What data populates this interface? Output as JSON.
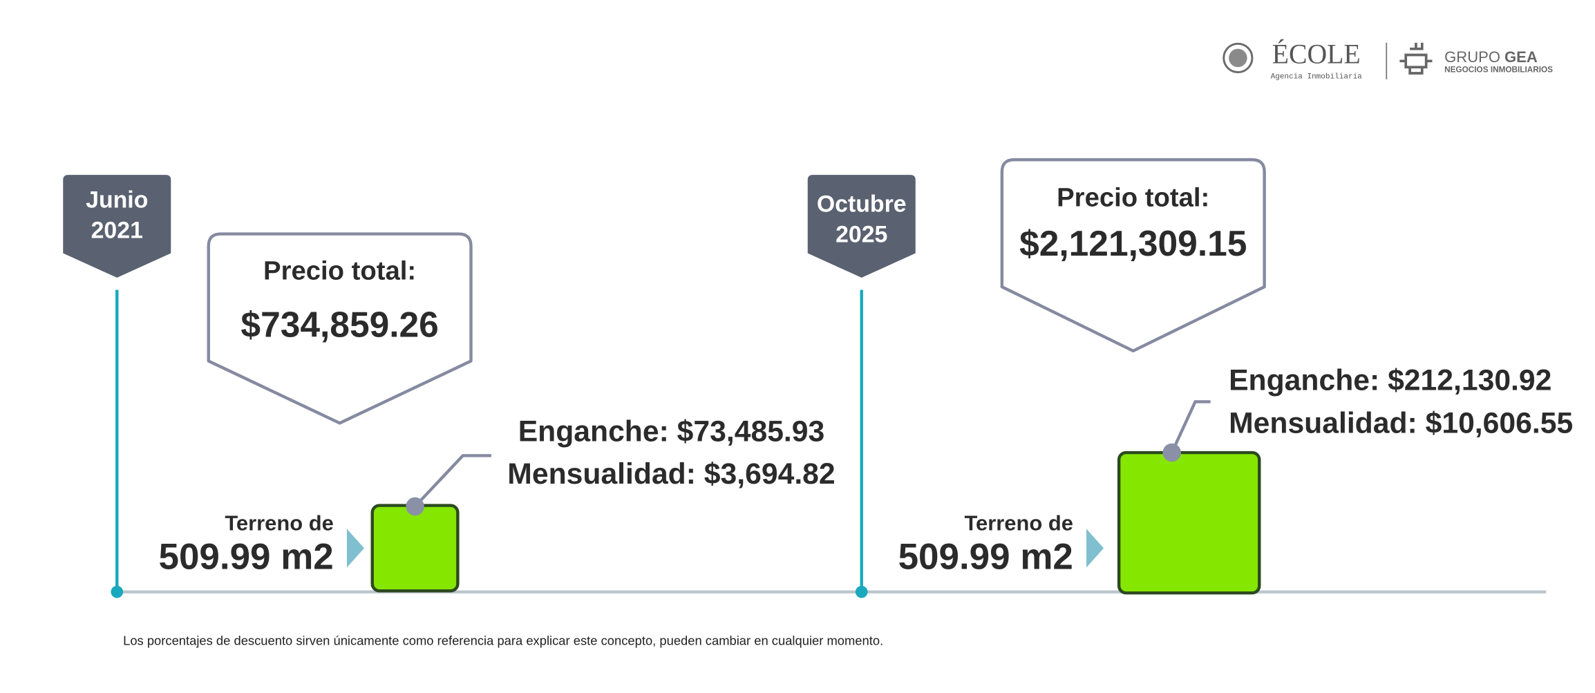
{
  "header": {
    "brand1": "ÉCOLE",
    "brand1_sub": "Agencia Inmobiliaria",
    "brand2_light": "GRUPO",
    "brand2_bold": "GEA",
    "brand2_sub": "NEGOCIOS INMOBILIARIOS"
  },
  "panels": [
    {
      "date_month": "Junio",
      "date_year": "2021",
      "price_label": "Precio total:",
      "price": "$734,859.26",
      "enganche": "Enganche: $73,485.93",
      "mensualidad": "Mensualidad: $3,694.82",
      "terreno_label": "Terreno de",
      "terreno_area": "509.99 m2"
    },
    {
      "date_month": "Octubre",
      "date_year": "2025",
      "price_label": "Precio total:",
      "price": "$2,121,309.15",
      "enganche": "Enganche: $212,130.92",
      "mensualidad": "Mensualidad: $10,606.55",
      "terreno_label": "Terreno de",
      "terreno_area": "509.99 m2"
    }
  ],
  "footnote": "Los porcentajes de descuento sirven únicamente como referencia para explicar este concepto, pueden cambiar en cualquier momento."
}
